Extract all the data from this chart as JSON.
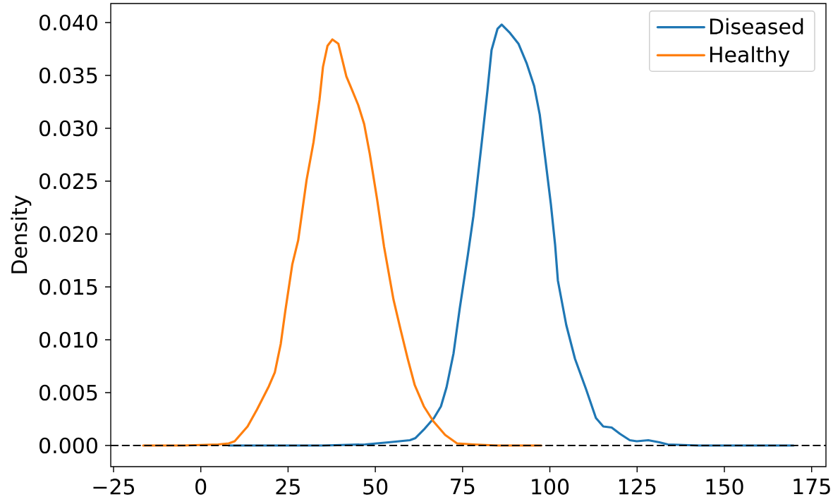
{
  "chart_data": {
    "type": "line",
    "ylabel": "Density",
    "legend": "top right",
    "line_style": "solid",
    "xlim": [
      -25.8,
      179.1
    ],
    "ylim": [
      -0.002,
      0.0418
    ],
    "xticks": [
      {
        "value": -25,
        "label": "−25"
      },
      0,
      25,
      50,
      75,
      100,
      125,
      150,
      175
    ],
    "yticks": [
      {
        "value": 0,
        "label": "0.000"
      },
      {
        "value": 0.005,
        "label": "0.005"
      },
      {
        "value": 0.01,
        "label": "0.010"
      },
      {
        "value": 0.015,
        "label": "0.015"
      },
      {
        "value": 0.02,
        "label": "0.020"
      },
      {
        "value": 0.025,
        "label": "0.025"
      },
      {
        "value": 0.03,
        "label": "0.030"
      },
      {
        "value": 0.035,
        "label": "0.035"
      },
      {
        "value": 0.04,
        "label": "0.040"
      }
    ],
    "ref_lines": [
      {
        "axis": "y",
        "value": 0,
        "color": "#000000",
        "line_style": "dashed"
      }
    ],
    "series": [
      {
        "name": "Diseased",
        "color": "#1f77b4",
        "x": [
          8,
          20,
          35,
          47.1,
          53.8,
          59.9,
          61.5,
          63.9,
          66.8,
          68.8,
          70.4,
          72.4,
          74.2,
          76.5,
          78.1,
          80.5,
          82.1,
          83.3,
          85.0,
          86.2,
          88.6,
          91.0,
          93.4,
          95.5,
          97.1,
          98.7,
          100.3,
          101.5,
          102.3,
          104.7,
          107.2,
          110.4,
          113.2,
          115.3,
          117.7,
          120.1,
          122.9,
          124.9,
          128.2,
          131.4,
          133.8,
          142.7,
          155,
          169.8
        ],
        "values": [
          0,
          0,
          0,
          0.0001,
          0.0003,
          0.0005,
          0.0007,
          0.0015,
          0.0026,
          0.0037,
          0.0055,
          0.0087,
          0.013,
          0.018,
          0.0217,
          0.0287,
          0.0335,
          0.0374,
          0.0394,
          0.0398,
          0.039,
          0.038,
          0.0361,
          0.034,
          0.0313,
          0.0271,
          0.0228,
          0.019,
          0.0156,
          0.0114,
          0.0082,
          0.0053,
          0.0026,
          0.0018,
          0.0017,
          0.0011,
          0.0005,
          0.0004,
          0.0005,
          0.0003,
          0.0001,
          0,
          0,
          0
        ]
      },
      {
        "name": "Healthy",
        "color": "#ff7f0e",
        "x": [
          -16.5,
          -5,
          5,
          8,
          9.7,
          13.4,
          16.1,
          19.5,
          21.2,
          22.9,
          24.2,
          26.2,
          27.9,
          30.3,
          32.3,
          34.0,
          35.0,
          36.3,
          37.7,
          39.4,
          41.7,
          43.1,
          45.1,
          46.8,
          48.4,
          50.5,
          52.5,
          55.2,
          57.2,
          59.2,
          61.3,
          63.9,
          66.6,
          70.0,
          73.4,
          78.1,
          85,
          97.5
        ],
        "values": [
          0,
          0,
          0.0001,
          0.0002,
          0.0004,
          0.0018,
          0.0034,
          0.0056,
          0.0069,
          0.0096,
          0.0127,
          0.0171,
          0.0194,
          0.0251,
          0.0287,
          0.0327,
          0.0358,
          0.0378,
          0.0384,
          0.038,
          0.0349,
          0.0338,
          0.0322,
          0.0304,
          0.0276,
          0.0233,
          0.0188,
          0.0138,
          0.011,
          0.0083,
          0.0057,
          0.0037,
          0.0023,
          0.001,
          0.0002,
          0.0001,
          0,
          0
        ]
      }
    ]
  }
}
